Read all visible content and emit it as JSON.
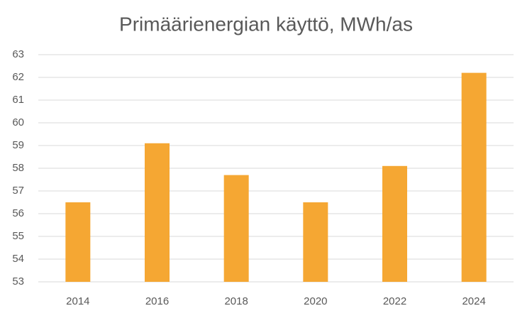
{
  "chart_data": {
    "type": "bar",
    "title": "Primäärienergian käyttö, MWh/as",
    "categories": [
      "2014",
      "2016",
      "2018",
      "2020",
      "2022",
      "2024"
    ],
    "values": [
      56.5,
      59.1,
      57.7,
      56.5,
      58.1,
      62.2
    ],
    "color": "#f5a733",
    "ylim": [
      53,
      63
    ],
    "yticks": [
      53,
      54,
      55,
      56,
      57,
      58,
      59,
      60,
      61,
      62,
      63
    ],
    "grid": true
  }
}
